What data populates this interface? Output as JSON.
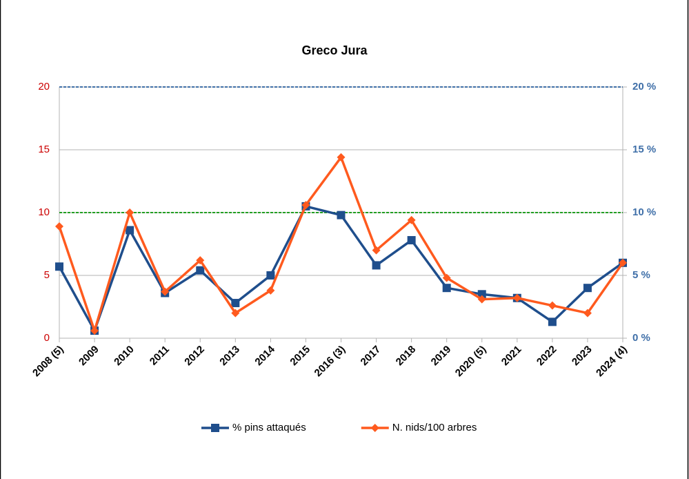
{
  "chart_data": {
    "type": "line",
    "title": "Greco Jura",
    "categories": [
      "2008 (5)",
      "2009",
      "2010",
      "2011",
      "2012",
      "2013",
      "2014",
      "2015",
      "2016 (3)",
      "2017",
      "2018",
      "2019",
      "2020 (5)",
      "2021",
      "2022",
      "2023",
      "2024 (4)"
    ],
    "series": [
      {
        "name": "% pins attaqués",
        "color": "#1f4e8c",
        "marker": "square",
        "axis": "y2",
        "values": [
          5.7,
          0.6,
          8.6,
          3.6,
          5.4,
          2.8,
          5.0,
          10.5,
          9.8,
          5.8,
          7.8,
          4.0,
          3.5,
          3.2,
          1.3,
          4.0,
          6.0
        ]
      },
      {
        "name": "N. nids/100 arbres",
        "color": "#ff5a1e",
        "marker": "diamond",
        "values": [
          8.9,
          0.6,
          10.0,
          3.7,
          6.2,
          2.0,
          3.8,
          10.6,
          14.4,
          7.0,
          9.4,
          4.8,
          3.1,
          3.2,
          2.6,
          2.0,
          6.0
        ]
      }
    ],
    "ylim": [
      0,
      20
    ],
    "yticks": [
      0,
      5,
      10,
      15,
      20
    ],
    "ytick_color": "#cc0000",
    "y2lim": [
      0,
      20
    ],
    "y2ticks": [
      {
        "value": 0,
        "label": "0 %"
      },
      {
        "value": 5,
        "label": "5 %"
      },
      {
        "value": 10,
        "label": "10 %"
      },
      {
        "value": 15,
        "label": "15 %"
      },
      {
        "value": 20,
        "label": "20 %"
      }
    ],
    "y2tick_color": "#3f6fa8",
    "reference_lines": [
      {
        "value": 20,
        "color": "#3f6fa8"
      },
      {
        "value": 10,
        "color": "#22a022"
      }
    ],
    "grid": true,
    "legend": "bottom"
  }
}
